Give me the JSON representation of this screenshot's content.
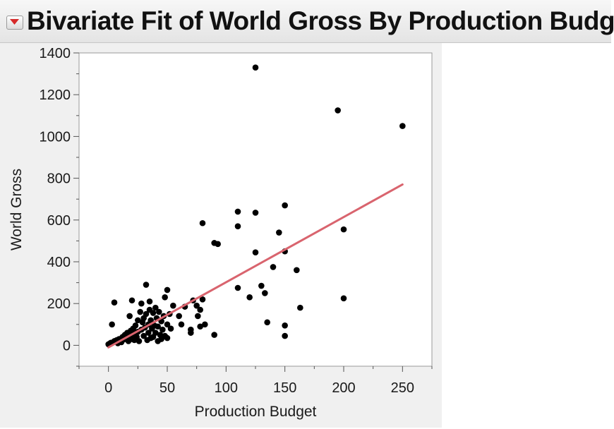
{
  "header": {
    "title": "Bivariate Fit of World Gross By Production Budget",
    "menu_icon": "red-triangle-menu-icon"
  },
  "colors": {
    "points": "#000000",
    "fit_line": "#d9646e",
    "menu_triangle": "#d62a2a"
  },
  "chart_data": {
    "type": "scatter",
    "title": "Bivariate Fit of World Gross By Production Budget",
    "xlabel": "Production Budget",
    "ylabel": "World Gross",
    "xlim": [
      -25,
      275
    ],
    "ylim": [
      -100,
      1400
    ],
    "xticks": [
      0,
      50,
      100,
      150,
      200,
      250
    ],
    "yticks": [
      0,
      200,
      400,
      600,
      800,
      1000,
      1200,
      1400
    ],
    "grid": false,
    "legend": "none",
    "fit_line": {
      "x": [
        0,
        250
      ],
      "y": [
        -10,
        770
      ]
    },
    "points": [
      [
        0,
        5
      ],
      [
        1,
        8
      ],
      [
        2,
        12
      ],
      [
        3,
        100
      ],
      [
        4,
        15
      ],
      [
        5,
        205
      ],
      [
        5,
        20
      ],
      [
        6,
        18
      ],
      [
        7,
        25
      ],
      [
        8,
        10
      ],
      [
        9,
        30
      ],
      [
        10,
        22
      ],
      [
        11,
        15
      ],
      [
        12,
        40
      ],
      [
        13,
        28
      ],
      [
        14,
        50
      ],
      [
        15,
        35
      ],
      [
        16,
        60
      ],
      [
        17,
        20
      ],
      [
        18,
        45
      ],
      [
        18,
        140
      ],
      [
        19,
        70
      ],
      [
        20,
        30
      ],
      [
        20,
        215
      ],
      [
        21,
        80
      ],
      [
        22,
        25
      ],
      [
        22,
        55
      ],
      [
        23,
        95
      ],
      [
        24,
        40
      ],
      [
        25,
        65
      ],
      [
        25,
        120
      ],
      [
        26,
        20
      ],
      [
        27,
        160
      ],
      [
        28,
        75
      ],
      [
        28,
        200
      ],
      [
        29,
        110
      ],
      [
        30,
        45
      ],
      [
        30,
        130
      ],
      [
        31,
        85
      ],
      [
        32,
        290
      ],
      [
        32,
        150
      ],
      [
        33,
        25
      ],
      [
        34,
        60
      ],
      [
        34,
        100
      ],
      [
        35,
        210
      ],
      [
        35,
        170
      ],
      [
        36,
        35
      ],
      [
        36,
        120
      ],
      [
        37,
        80
      ],
      [
        38,
        155
      ],
      [
        38,
        40
      ],
      [
        39,
        95
      ],
      [
        40,
        180
      ],
      [
        40,
        60
      ],
      [
        41,
        130
      ],
      [
        42,
        20
      ],
      [
        42,
        90
      ],
      [
        43,
        160
      ],
      [
        44,
        50
      ],
      [
        45,
        115
      ],
      [
        45,
        30
      ],
      [
        46,
        75
      ],
      [
        47,
        140
      ],
      [
        48,
        45
      ],
      [
        48,
        230
      ],
      [
        50,
        265
      ],
      [
        50,
        100
      ],
      [
        50,
        35
      ],
      [
        52,
        150
      ],
      [
        53,
        80
      ],
      [
        55,
        190
      ],
      [
        60,
        140
      ],
      [
        62,
        100
      ],
      [
        65,
        185
      ],
      [
        70,
        75
      ],
      [
        70,
        60
      ],
      [
        72,
        215
      ],
      [
        75,
        190
      ],
      [
        76,
        140
      ],
      [
        78,
        170
      ],
      [
        78,
        90
      ],
      [
        80,
        585
      ],
      [
        80,
        220
      ],
      [
        82,
        100
      ],
      [
        90,
        50
      ],
      [
        90,
        490
      ],
      [
        93,
        485
      ],
      [
        110,
        640
      ],
      [
        110,
        570
      ],
      [
        110,
        275
      ],
      [
        120,
        230
      ],
      [
        125,
        1330
      ],
      [
        125,
        635
      ],
      [
        125,
        445
      ],
      [
        130,
        285
      ],
      [
        133,
        250
      ],
      [
        135,
        110
      ],
      [
        140,
        375
      ],
      [
        145,
        540
      ],
      [
        150,
        670
      ],
      [
        150,
        450
      ],
      [
        150,
        95
      ],
      [
        150,
        45
      ],
      [
        160,
        360
      ],
      [
        163,
        180
      ],
      [
        195,
        1125
      ],
      [
        200,
        555
      ],
      [
        200,
        225
      ],
      [
        250,
        1050
      ]
    ]
  }
}
